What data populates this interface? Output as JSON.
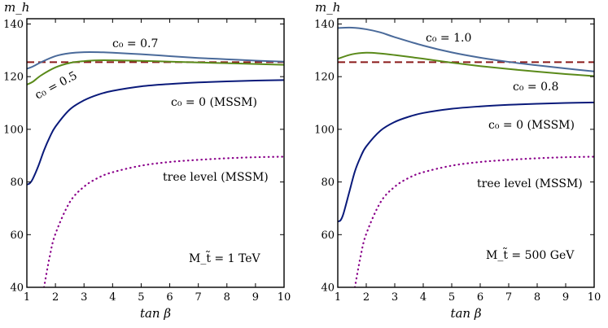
{
  "chart_data": [
    {
      "type": "line",
      "ylabel": "m_h",
      "xlabel": "tan β",
      "xlim": [
        1,
        10
      ],
      "ylim": [
        40,
        142
      ],
      "xticks": [
        "1",
        "2",
        "3",
        "4",
        "5",
        "6",
        "7",
        "8",
        "9",
        "10"
      ],
      "yticks": [
        "40",
        "60",
        "80",
        "100",
        "120",
        "140"
      ],
      "corner_label": "M_t̃ = 1 TeV",
      "reference_line": {
        "name": "observed m_h",
        "value": 125.5,
        "color": "#8b1a1a",
        "style": "dashed"
      },
      "series": [
        {
          "name": "c0 = 0.7",
          "label": "c₀ = 0.7",
          "color": "#4a6a9a",
          "style": "solid",
          "x": [
            1,
            1.2,
            1.5,
            2,
            2.5,
            3,
            3.5,
            4,
            5,
            6,
            7,
            8,
            9,
            10
          ],
          "y": [
            123,
            123.8,
            125.5,
            127.8,
            128.9,
            129.3,
            129.3,
            129.1,
            128.5,
            127.8,
            127.1,
            126.6,
            126.1,
            125.7
          ]
        },
        {
          "name": "c0 = 0.5",
          "label": "c₀ = 0.5",
          "color": "#5a8a1a",
          "style": "solid",
          "x": [
            1,
            1.2,
            1.5,
            2,
            2.5,
            3,
            3.5,
            4,
            5,
            6,
            7,
            8,
            9,
            10
          ],
          "y": [
            117,
            118,
            120.5,
            123.5,
            125.2,
            125.9,
            126.2,
            126.2,
            126,
            125.7,
            125.4,
            125.1,
            124.8,
            124.5
          ]
        },
        {
          "name": "c0 = 0 (MSSM)",
          "label": "c₀ = 0 (MSSM)",
          "color": "#0a1a7a",
          "style": "solid",
          "x": [
            1,
            1.1,
            1.2,
            1.4,
            1.6,
            1.8,
            2,
            2.5,
            3,
            3.5,
            4,
            5,
            6,
            7,
            8,
            9,
            10
          ],
          "y": [
            79,
            79.5,
            81,
            86,
            92,
            97,
            101,
            107.5,
            111,
            113.2,
            114.6,
            116.3,
            117.2,
            117.8,
            118.2,
            118.5,
            118.7
          ]
        },
        {
          "name": "tree level (MSSM)",
          "label": "tree level (MSSM)",
          "color": "#8a008a",
          "style": "dotted",
          "x": [
            1.6,
            1.8,
            2,
            2.5,
            3,
            3.5,
            4,
            5,
            6,
            7,
            8,
            9,
            10
          ],
          "y": [
            40,
            51.7,
            60.3,
            72.3,
            78.2,
            81.6,
            83.7,
            86.2,
            87.6,
            88.4,
            89,
            89.4,
            89.6
          ]
        }
      ]
    },
    {
      "type": "line",
      "ylabel": "m_h",
      "xlabel": "tan β",
      "xlim": [
        1,
        10
      ],
      "ylim": [
        40,
        142
      ],
      "xticks": [
        "1",
        "2",
        "3",
        "4",
        "5",
        "6",
        "7",
        "8",
        "9",
        "10"
      ],
      "yticks": [
        "40",
        "60",
        "80",
        "100",
        "120",
        "140"
      ],
      "corner_label": "M_t̃ = 500 GeV",
      "reference_line": {
        "name": "observed m_h",
        "value": 125.5,
        "color": "#8b1a1a",
        "style": "dashed"
      },
      "series": [
        {
          "name": "c0 = 1.0",
          "label": "c₀ = 1.0",
          "color": "#4a6a9a",
          "style": "solid",
          "x": [
            1,
            1.5,
            2,
            2.5,
            3,
            4,
            5,
            6,
            7,
            8,
            9,
            10
          ],
          "y": [
            138.5,
            138.6,
            138,
            136.8,
            135,
            131.8,
            129.2,
            127.2,
            125.6,
            124.3,
            123.1,
            122
          ]
        },
        {
          "name": "c0 = 0.8",
          "label": "c₀ = 0.8",
          "color": "#5a8a1a",
          "style": "solid",
          "x": [
            1,
            1.5,
            2,
            2.5,
            3,
            4,
            5,
            6,
            7,
            8,
            9,
            10
          ],
          "y": [
            126.8,
            128.5,
            129.1,
            128.8,
            128.2,
            126.8,
            125.3,
            124,
            122.9,
            121.9,
            121,
            120.2
          ]
        },
        {
          "name": "c0 = 0 (MSSM)",
          "label": "c₀ = 0 (MSSM)",
          "color": "#0a1a7a",
          "style": "solid",
          "x": [
            1,
            1.1,
            1.2,
            1.4,
            1.6,
            1.8,
            2,
            2.5,
            3,
            3.5,
            4,
            5,
            6,
            7,
            8,
            9,
            10
          ],
          "y": [
            65,
            65.5,
            68,
            76,
            84,
            89.5,
            93.5,
            99.5,
            102.8,
            104.8,
            106.2,
            107.8,
            108.7,
            109.3,
            109.7,
            110,
            110.2
          ]
        },
        {
          "name": "tree level (MSSM)",
          "label": "tree level (MSSM)",
          "color": "#8a008a",
          "style": "dotted",
          "x": [
            1.6,
            1.8,
            2,
            2.5,
            3,
            3.5,
            4,
            5,
            6,
            7,
            8,
            9,
            10
          ],
          "y": [
            40,
            51.7,
            60.3,
            72.3,
            78.2,
            81.6,
            83.7,
            86.2,
            87.6,
            88.4,
            89,
            89.4,
            89.6
          ]
        }
      ]
    }
  ]
}
